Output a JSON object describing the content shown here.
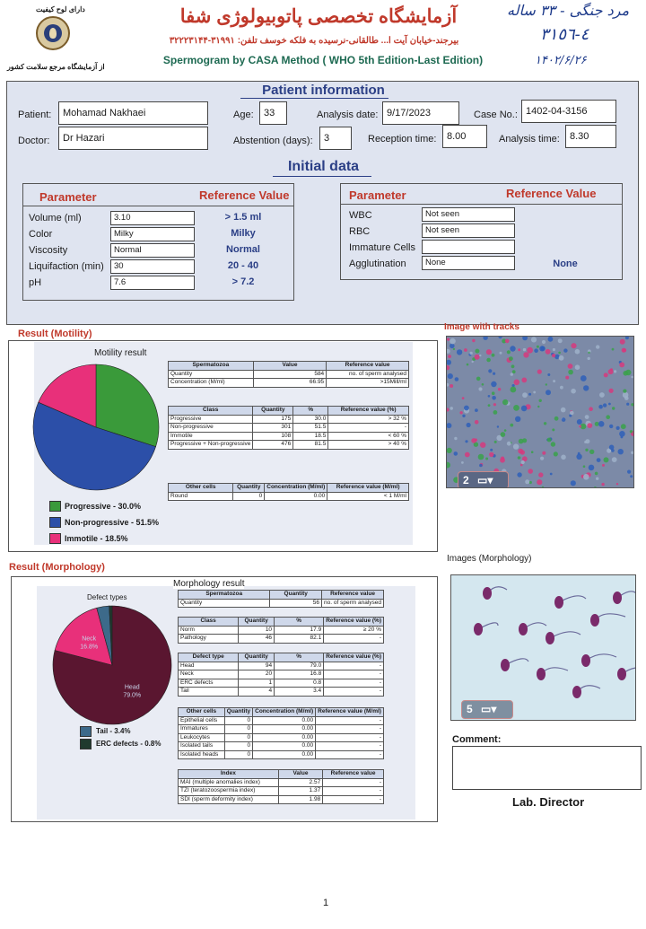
{
  "header": {
    "top_left_label": "دارای لوح کیفیت",
    "bottom_left_label": "از آزمایشگاه مرجع سلامت کشور",
    "lab_name": "آزمایشگاه تخصصی پاتوبیولوژی شفا",
    "address": "بیرجند-خیابان آیت ا... طالقانی-نرسیده به فلکه خوسف تلفن: ۳۱۹۹۱-۳۲۲۲۳۱۴۴",
    "subtitle": "Spermogram by CASA Method ( WHO 5th Edition-Last Edition)",
    "handwriting": {
      "line1": "مرد جنگی - ۳۳ ساله",
      "line2": "٤-٣١٥٦",
      "line3": "۱۴۰۲/۶/۲۶"
    }
  },
  "patient": {
    "section_title": "Patient information",
    "patient_label": "Patient:",
    "patient_value": "Mohamad Nakhaei",
    "age_label": "Age:",
    "age_value": "33",
    "analysis_date_label": "Analysis date:",
    "analysis_date_value": "9/17/2023",
    "case_label": "Case No.:",
    "case_value": "1402-04-3156",
    "doctor_label": "Doctor:",
    "doctor_value": "Dr Hazari",
    "abstention_label": "Abstention (days):",
    "abstention_value": "3",
    "reception_label": "Reception time:",
    "reception_value": "8.00",
    "analysis_time_label": "Analysis time:",
    "analysis_time_value": "8.30"
  },
  "initial": {
    "section_title": "Initial data",
    "param_header": "Parameter",
    "ref_header": "Reference Value",
    "left_rows": [
      {
        "label": "Volume (ml)",
        "value": "3.10",
        "ref": "> 1.5 ml"
      },
      {
        "label": "Color",
        "value": "Milky",
        "ref": "Milky"
      },
      {
        "label": "Viscosity",
        "value": "Normal",
        "ref": "Normal"
      },
      {
        "label": "Liquifaction (min)",
        "value": "30",
        "ref": "20 - 40"
      },
      {
        "label": "pH",
        "value": "7.6",
        "ref": "> 7.2"
      }
    ],
    "right_rows": [
      {
        "label": "WBC",
        "value": "Not seen",
        "ref": ""
      },
      {
        "label": "RBC",
        "value": "Not seen",
        "ref": ""
      },
      {
        "label": "Immature Cells",
        "value": "",
        "ref": ""
      },
      {
        "label": "Agglutination",
        "value": "None",
        "ref": "None"
      }
    ]
  },
  "motility": {
    "section_title": "Result (Motility)",
    "chart_title": "Motility result",
    "image_title": "Image with tracks",
    "image_badge": "2",
    "legend": [
      {
        "label": "Progressive - 30.0%",
        "color": "#3a9a3a"
      },
      {
        "label": "Non-progressive - 51.5%",
        "color": "#2c4fa8"
      },
      {
        "label": "Immotile - 18.5%",
        "color": "#e8307a"
      }
    ],
    "summary_headers": [
      "Spermatozoa",
      "Value",
      "Reference value"
    ],
    "summary_rows": [
      [
        "Quantity",
        "584",
        "no. of sperm analysed"
      ],
      [
        "Concentration (M/ml)",
        "66.95",
        ">15Mill/ml"
      ]
    ],
    "class_headers": [
      "Class",
      "Quantity",
      "%",
      "Reference value (%)"
    ],
    "class_rows": [
      [
        "Progressive",
        "175",
        "30.0",
        "> 32 %"
      ],
      [
        "Non-progressive",
        "301",
        "51.5",
        "-"
      ],
      [
        "Immotile",
        "108",
        "18.5",
        "< 60 %"
      ],
      [
        "Progressive + Non-progressive",
        "476",
        "81.5",
        "> 40 %"
      ]
    ],
    "other_headers": [
      "Other cells",
      "Quantity",
      "Concentration (M/ml)",
      "Reference value (M/ml)"
    ],
    "other_rows": [
      [
        "Round",
        "0",
        "0.00",
        "< 1 M/ml"
      ]
    ]
  },
  "morphology": {
    "section_title": "Result (Morphology)",
    "chart_title": "Morphology result",
    "pie_title": "Defect types",
    "image_title": "Images (Morphology)",
    "image_badge": "5",
    "legend": [
      {
        "label": "Tail - 3.4%",
        "color": "#3d6a8a"
      },
      {
        "label": "ERC defects - 0.8%",
        "color": "#1f3a2e"
      }
    ],
    "summary_headers": [
      "Spermatozoa",
      "Quantity",
      "Reference value"
    ],
    "summary_rows": [
      [
        "Quantity",
        "56",
        "no. of sperm analysed"
      ]
    ],
    "class_headers": [
      "Class",
      "Quantity",
      "%",
      "Reference value (%)"
    ],
    "class_rows": [
      [
        "Norm",
        "10",
        "17.9",
        "≥ 20 %"
      ],
      [
        "Pathology",
        "46",
        "82.1",
        "-"
      ]
    ],
    "defect_headers": [
      "Defect type",
      "Quantity",
      "%",
      "Reference value (%)"
    ],
    "defect_rows": [
      [
        "Head",
        "94",
        "79.0",
        "-"
      ],
      [
        "Neck",
        "20",
        "16.8",
        "-"
      ],
      [
        "ERC defects",
        "1",
        "0.8",
        "-"
      ],
      [
        "Tail",
        "4",
        "3.4",
        "-"
      ]
    ],
    "other_headers": [
      "Other cells",
      "Quantity",
      "Concentration (M/ml)",
      "Reference value (M/ml)"
    ],
    "other_rows": [
      [
        "Epithelial cells",
        "0",
        "0.00",
        "-"
      ],
      [
        "Immatures",
        "0",
        "0.00",
        "-"
      ],
      [
        "Leukocytes",
        "0",
        "0.00",
        "-"
      ],
      [
        "Isolated tails",
        "0",
        "0.00",
        "-"
      ],
      [
        "Isolated heads",
        "0",
        "0.00",
        "-"
      ]
    ],
    "index_headers": [
      "Index",
      "Value",
      "Reference value"
    ],
    "index_rows": [
      [
        "MAI (multiple anomalies index)",
        "2.57",
        "-"
      ],
      [
        "TZI (teratozoospermia index)",
        "1.37",
        "-"
      ],
      [
        "SDI (sperm deformity index)",
        "1.98",
        "-"
      ]
    ]
  },
  "comment_label": "Comment:",
  "comment_value": "",
  "director_label": "Lab. Director",
  "page_number": "1",
  "chart_data": [
    {
      "type": "pie",
      "title": "Motility result",
      "categories": [
        "Progressive",
        "Non-progressive",
        "Immotile"
      ],
      "values": [
        30.0,
        51.5,
        18.5
      ],
      "colors": [
        "#3a9a3a",
        "#2c4fa8",
        "#e8307a"
      ],
      "legend": "bottom"
    },
    {
      "type": "pie",
      "title": "Defect types",
      "categories": [
        "Head",
        "Neck",
        "Tail",
        "ERC defects"
      ],
      "values": [
        79.0,
        16.8,
        3.4,
        0.8
      ],
      "labels": [
        "Head 79.0%",
        "Neck 16.8%"
      ],
      "colors": [
        "#5a1630",
        "#e8307a",
        "#3d6a8a",
        "#1f3a2e"
      ],
      "legend": "bottom"
    }
  ]
}
